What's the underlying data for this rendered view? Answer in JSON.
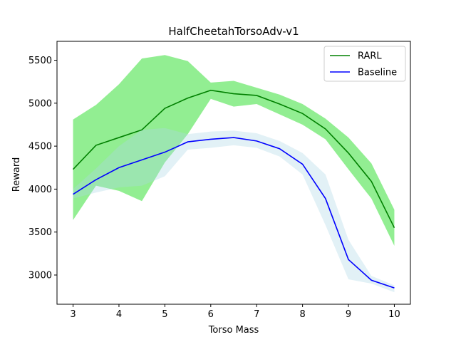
{
  "chart_data": {
    "type": "line",
    "title": "HalfCheetahTorsoAdv-v1",
    "xlabel": "Torso Mass",
    "ylabel": "Reward",
    "xlim": [
      2.65,
      10.35
    ],
    "ylim": [
      2660,
      5720
    ],
    "xticks": [
      3,
      4,
      5,
      6,
      7,
      8,
      9,
      10
    ],
    "yticks": [
      3000,
      3500,
      4000,
      4500,
      5000,
      5500
    ],
    "legend_position": "top-right",
    "x": [
      3,
      3.5,
      4,
      4.5,
      5,
      5.5,
      6,
      6.5,
      7,
      7.5,
      8,
      8.5,
      9,
      9.5,
      10
    ],
    "series": [
      {
        "name": "RARL",
        "color": "#008000",
        "band_color": "#90ee90",
        "values": [
          4230,
          4510,
          4600,
          4690,
          4940,
          5060,
          5150,
          5110,
          5090,
          4990,
          4880,
          4700,
          4420,
          4090,
          3550
        ],
        "upper": [
          4810,
          4980,
          5220,
          5520,
          5560,
          5490,
          5240,
          5260,
          5180,
          5100,
          4990,
          4820,
          4600,
          4300,
          3760
        ],
        "lower": [
          3640,
          4040,
          3980,
          3860,
          4310,
          4640,
          5050,
          4960,
          4990,
          4870,
          4750,
          4580,
          4230,
          3890,
          3340
        ]
      },
      {
        "name": "Baseline",
        "color": "#0000ff",
        "band_color": "#add8e6",
        "values": [
          3940,
          4110,
          4250,
          4340,
          4430,
          4550,
          4580,
          4600,
          4560,
          4470,
          4290,
          3890,
          3180,
          2940,
          2850
        ],
        "upper": [
          4000,
          4240,
          4500,
          4690,
          4710,
          4640,
          4670,
          4680,
          4650,
          4560,
          4420,
          4170,
          3410,
          2990,
          2880
        ],
        "lower": [
          3890,
          3960,
          4020,
          4040,
          4150,
          4460,
          4480,
          4510,
          4480,
          4380,
          4170,
          3580,
          2950,
          2900,
          2800
        ]
      }
    ]
  }
}
